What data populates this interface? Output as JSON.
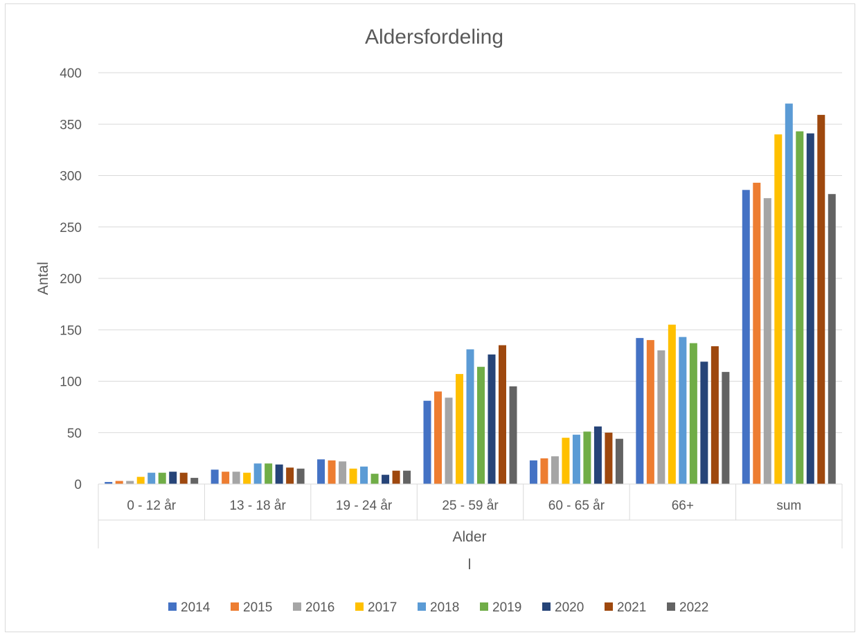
{
  "chart_data": {
    "type": "bar",
    "title": "Aldersfordeling",
    "xlabel": "Alder",
    "x_sublabel": "l",
    "ylabel": "Antal",
    "ylim": [
      0,
      400
    ],
    "yticks": [
      0,
      50,
      100,
      150,
      200,
      250,
      300,
      350,
      400
    ],
    "grid": true,
    "legend_position": "bottom",
    "categories": [
      "0 - 12 år",
      "13 - 18 år",
      "19 - 24 år",
      "25 - 59 år",
      "60  - 65 år",
      "66+",
      "sum"
    ],
    "series": [
      {
        "name": "2014",
        "color": "#4472c4",
        "values": [
          2,
          14,
          24,
          81,
          23,
          142,
          286
        ]
      },
      {
        "name": "2015",
        "color": "#ed7d31",
        "values": [
          3,
          12,
          23,
          90,
          25,
          140,
          293
        ]
      },
      {
        "name": "2016",
        "color": "#a5a5a5",
        "values": [
          3,
          12,
          22,
          84,
          27,
          130,
          278
        ]
      },
      {
        "name": "2017",
        "color": "#ffc000",
        "values": [
          7,
          11,
          15,
          107,
          45,
          155,
          340
        ]
      },
      {
        "name": "2018",
        "color": "#5b9bd5",
        "values": [
          11,
          20,
          17,
          131,
          48,
          143,
          370
        ]
      },
      {
        "name": "2019",
        "color": "#70ad47",
        "values": [
          11,
          20,
          10,
          114,
          51,
          137,
          343
        ]
      },
      {
        "name": "2020",
        "color": "#264478",
        "values": [
          12,
          19,
          9,
          126,
          56,
          119,
          341
        ]
      },
      {
        "name": "2021",
        "color": "#9e480e",
        "values": [
          11,
          16,
          13,
          135,
          50,
          134,
          359
        ]
      },
      {
        "name": "2022",
        "color": "#636363",
        "values": [
          6,
          15,
          13,
          95,
          44,
          109,
          282
        ]
      }
    ]
  }
}
